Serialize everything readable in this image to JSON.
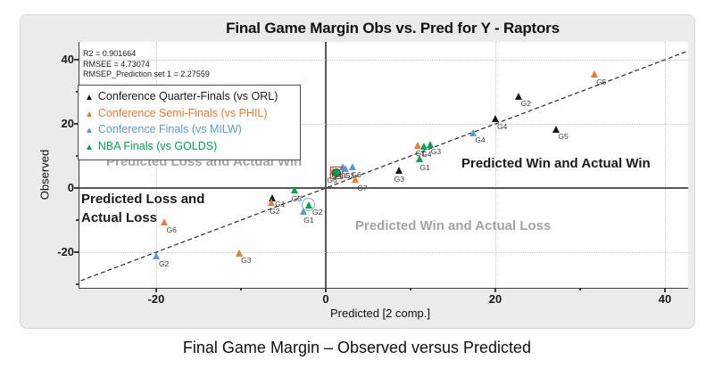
{
  "figure": {
    "title": "Final Game Margin Obs vs. Pred for Y - Raptors",
    "caption": "Final Game Margin – Observed versus Predicted",
    "stats_lines": [
      "R2 = 0.901664",
      "RMSEE = 4.73074",
      "RMSEP_Prediction set 1 = 2.27559"
    ],
    "legend": {
      "items": [
        {
          "label": "Conference Quarter-Finals (vs ORL)",
          "color": "#1a1a1a"
        },
        {
          "label": "Conference Semi-Finals (vs PHIL)",
          "color": "#ED7D31"
        },
        {
          "label": "Conference Finals (vs MILW)",
          "color": "#5B9BD5"
        },
        {
          "label": "NBA Finals (vs GOLDS)",
          "color": "#00A550"
        }
      ]
    },
    "quadrant_labels": {
      "top_left": {
        "text": "Predicted Loss and Actual Win",
        "color": "#a3a3a3"
      },
      "top_right": {
        "text": "Predicted Win and Actual Win",
        "color": "#1a1a1a"
      },
      "bottom_left_line1": "Predicted Loss and",
      "bottom_left_line2": "Actual Loss",
      "bottom_left_color": "#1a1a1a",
      "bottom_right": {
        "text": "Predicted Win and Actual Loss",
        "color": "#a3a3a3"
      }
    },
    "selection": {
      "red_square_color": "#e6392e",
      "blue_circle_color": "#8a9cf0"
    }
  },
  "chart_data": {
    "type": "scatter",
    "title": "Final Game Margin Obs vs. Pred for Y - Raptors",
    "xlabel": "Predicted [2 comp.]",
    "ylabel": "Observed",
    "xlim": [
      -29,
      43
    ],
    "ylim": [
      -31,
      45
    ],
    "xticks": [
      -20,
      0,
      20,
      40
    ],
    "xticks_minor": [
      -10,
      10,
      30
    ],
    "yticks": [
      -20,
      0,
      20,
      40
    ],
    "yticks_minor": [
      -30,
      -10,
      10,
      30
    ],
    "grid": "dotted",
    "identity_line": {
      "style": "dashed",
      "x1": -28.9,
      "y1": -28.9,
      "x2": 42.6,
      "y2": 42.6
    },
    "series": [
      {
        "name": "Conference Quarter-Finals (vs ORL)",
        "color": "#1a1a1a",
        "games": [
          {
            "g": "G1",
            "pred": -6.3,
            "obs": -3.1,
            "lo": [
              3,
              2
            ]
          },
          {
            "g": "G2",
            "pred": 22.8,
            "obs": 28.5
          },
          {
            "g": "G3",
            "pred": 8.7,
            "obs": 5.3,
            "lo": [
              -6,
              4
            ]
          },
          {
            "g": "G4",
            "pred": 20.0,
            "obs": 21.5
          },
          {
            "g": "G5",
            "pred": 27.2,
            "obs": 18.3
          }
        ]
      },
      {
        "name": "Conference Semi-Finals (vs PHIL)",
        "color": "#ED7D31",
        "games": [
          {
            "g": "G1",
            "pred": 10.9,
            "obs": 13.1,
            "lo": [
              -3,
              3
            ]
          },
          {
            "g": "G2",
            "pred": -6.4,
            "obs": -4.7,
            "lo": [
              -2,
              4
            ]
          },
          {
            "g": "G3",
            "pred": -10.2,
            "obs": -20.3
          },
          {
            "g": "G4",
            "pred": 0.9,
            "obs": 5.2,
            "lo": [
              -2,
              0
            ]
          },
          {
            "g": "G5",
            "pred": 31.7,
            "obs": 35.3
          },
          {
            "g": "G6",
            "pred": -19.0,
            "obs": -10.8
          },
          {
            "g": "G7",
            "pred": 3.5,
            "obs": 2.6,
            "lo": [
              2,
              4
            ]
          }
        ]
      },
      {
        "name": "Conference Finals (vs MILW)",
        "color": "#5B9BD5",
        "games": [
          {
            "g": "G1",
            "pred": -2.6,
            "obs": -7.4,
            "lo": [
              0,
              4
            ]
          },
          {
            "g": "G2",
            "pred": -19.9,
            "obs": -21.3
          },
          {
            "g": "G3",
            "pred": 2.4,
            "obs": 6.1,
            "lo": [
              -2,
              3
            ]
          },
          {
            "g": "G4",
            "pred": 17.4,
            "obs": 17.2
          },
          {
            "g": "G5",
            "pred": 2.0,
            "obs": 6.4,
            "lo": [
              -3,
              4
            ]
          },
          {
            "g": "G6",
            "pred": 3.2,
            "obs": 6.6,
            "lo": [
              -2,
              4
            ]
          }
        ]
      },
      {
        "name": "NBA Finals (vs GOLDS)",
        "color": "#00A550",
        "games": [
          {
            "g": "G1",
            "pred": 11.1,
            "obs": 8.9,
            "lo": [
              0,
              4
            ]
          },
          {
            "g": "G2",
            "pred": -2.0,
            "obs": -5.4,
            "lo": [
              4,
              3
            ],
            "hl": "blue-circle"
          },
          {
            "g": "G3",
            "pred": 12.4,
            "obs": 13.6,
            "lo": [
              0,
              3
            ]
          },
          {
            "g": "G4",
            "pred": 11.6,
            "obs": 12.9,
            "lo": [
              -3,
              3
            ]
          },
          {
            "g": "G5",
            "pred": -3.6,
            "obs": -0.8,
            "lo": [
              -4,
              4
            ]
          },
          {
            "g": "G6",
            "pred": 1.3,
            "obs": 4.7,
            "lo": [
              -11,
              3
            ],
            "shape": "circle",
            "hl": "red-square"
          }
        ]
      }
    ]
  }
}
